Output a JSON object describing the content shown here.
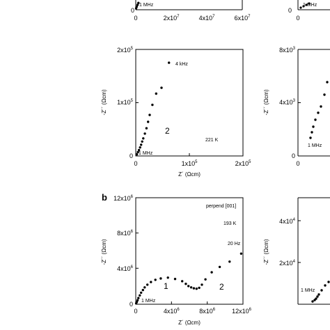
{
  "chart_data": [
    {
      "id": "top-left-partial",
      "type": "scatter",
      "x_ticks": [
        "0",
        "2x10^7",
        "4x10^7",
        "6x10^7"
      ],
      "annotations": [
        "1 MHz"
      ],
      "series": [
        {
          "points": [
            [
              200000.0,
              0.3
            ],
            [
              500000.0,
              0.6
            ],
            [
              1000000.0,
              1.0
            ],
            [
              1500000.0,
              1.4
            ]
          ]
        }
      ]
    },
    {
      "id": "top-right-partial",
      "type": "scatter",
      "x_ticks": [
        "0"
      ],
      "annotations": [
        "1 MHz"
      ],
      "series": [
        {
          "points": []
        }
      ]
    },
    {
      "id": "middle-left",
      "type": "scatter",
      "xlabel": "Z´ (Ωcm)",
      "ylabel": "-Z´´ (Ωcm)",
      "xlim": [
        0,
        200000.0
      ],
      "ylim": [
        0,
        200000.0
      ],
      "x_ticks": [
        {
          "v": 0,
          "t": "0"
        },
        {
          "v": 100000.0,
          "t": "1x10^5"
        },
        {
          "v": 200000.0,
          "t": "2x10^5"
        }
      ],
      "y_ticks": [
        {
          "v": 0,
          "t": "0"
        },
        {
          "v": 100000.0,
          "t": "1x10^5"
        },
        {
          "v": 200000.0,
          "t": "2x10^5"
        }
      ],
      "annotations": [
        "4 kHz",
        "1 MHz",
        "2",
        "221 K"
      ],
      "series": [
        {
          "points": [
            [
              2000,
              3000
            ],
            [
              4000,
              7000
            ],
            [
              6000,
              11000
            ],
            [
              8000,
              16000
            ],
            [
              10000,
              21000
            ],
            [
              12000,
              27000
            ],
            [
              14000,
              33000
            ],
            [
              17000,
              42000
            ],
            [
              20000,
              52000
            ],
            [
              23000,
              64000
            ],
            [
              26000,
              77000
            ],
            [
              31000,
              96000
            ],
            [
              38000,
              117000
            ],
            [
              48000,
              128000
            ],
            [
              62000,
              175000
            ]
          ]
        }
      ]
    },
    {
      "id": "middle-right-partial",
      "type": "scatter",
      "ylabel": "-Z´´ (Ωcm)",
      "y_ticks": [
        {
          "v": 0,
          "t": "0"
        },
        {
          "v": 4000.0,
          "t": "4x10^3"
        },
        {
          "v": 8000.0,
          "t": "8x10^3"
        }
      ],
      "x_ticks": [
        "0"
      ],
      "annotations": [
        "1 MHz"
      ],
      "series": [
        {
          "points": []
        }
      ]
    },
    {
      "id": "bottom-left",
      "type": "scatter",
      "panel_label": "b",
      "xlabel": "Z´ (Ωcm)",
      "ylabel": "-Z´´ (Ωcm)",
      "xlim": [
        0,
        12000000.0
      ],
      "ylim": [
        0,
        12000000.0
      ],
      "x_ticks": [
        {
          "v": 0,
          "t": "0"
        },
        {
          "v": 4000000.0,
          "t": "4x10^6"
        },
        {
          "v": 8000000.0,
          "t": "8x10^6"
        },
        {
          "v": 12000000.0,
          "t": "12x10^6"
        }
      ],
      "y_ticks": [
        {
          "v": 0,
          "t": "0"
        },
        {
          "v": 4000000.0,
          "t": "4x10^6"
        },
        {
          "v": 8000000.0,
          "t": "8x10^6"
        },
        {
          "v": 12000000.0,
          "t": "12x10^6"
        }
      ],
      "annotations": [
        "perpend [001]",
        "193 K",
        "20 Hz",
        "1 MHz",
        "1",
        "2"
      ],
      "series": [
        {
          "points": [
            [
              50000.0,
              100000.0
            ],
            [
              120000.0,
              250000.0
            ],
            [
              200000.0,
              450000.0
            ],
            [
              300000.0,
              700000.0
            ],
            [
              450000.0,
              1000000.0
            ],
            [
              600000.0,
              1300000.0
            ],
            [
              800000.0,
              1600000.0
            ],
            [
              1000000.0,
              1900000.0
            ],
            [
              1300000.0,
              2200000.0
            ],
            [
              1700000.0,
              2500000.0
            ],
            [
              2200000.0,
              2750000.0
            ],
            [
              2800000.0,
              2900000.0
            ],
            [
              3600000.0,
              3000000.0
            ],
            [
              4400000.0,
              2850000.0
            ],
            [
              5200000.0,
              2600000.0
            ],
            [
              5600000.0,
              2300000.0
            ],
            [
              5900000.0,
              2050000.0
            ],
            [
              6200000.0,
              1900000.0
            ],
            [
              6500000.0,
              1800000.0
            ],
            [
              6800000.0,
              1750000.0
            ],
            [
              7100000.0,
              1850000.0
            ],
            [
              7400000.0,
              2200000.0
            ],
            [
              7800000.0,
              2800000.0
            ],
            [
              8500000.0,
              3600000.0
            ],
            [
              9400000.0,
              4200000.0
            ],
            [
              10500000.0,
              4800000.0
            ],
            [
              11800000.0,
              5700000.0
            ]
          ]
        }
      ]
    },
    {
      "id": "bottom-right-partial",
      "type": "scatter",
      "ylabel": "-Z´´ (Ωcm)",
      "y_ticks": [
        {
          "v": 0,
          "t": "0"
        },
        {
          "v": 20000.0,
          "t": "2x10^4"
        },
        {
          "v": 40000.0,
          "t": "4x10^4"
        }
      ],
      "annotations": [
        "1 MHz"
      ],
      "series": [
        {
          "points": []
        }
      ]
    }
  ]
}
